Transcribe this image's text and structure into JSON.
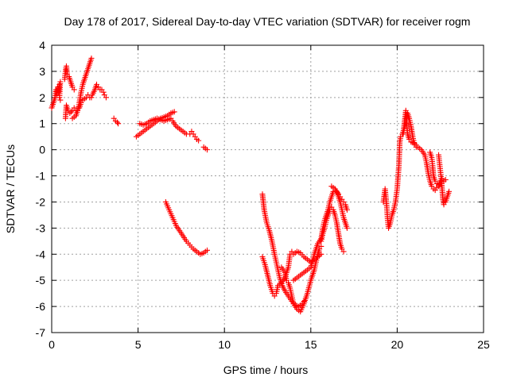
{
  "chart_data": {
    "type": "scatter",
    "title": "Day 178 of 2017, Sidereal Day-to-day VTEC variation (SDTVAR) for receiver rogm",
    "xlabel": "GPS time / hours",
    "ylabel": "SDTVAR / TECUs",
    "xlim": [
      0,
      25
    ],
    "ylim": [
      -7,
      4
    ],
    "xticks": [
      0,
      5,
      10,
      15,
      20,
      25
    ],
    "yticks": [
      -7,
      -6,
      -5,
      -4,
      -3,
      -2,
      -1,
      0,
      1,
      2,
      3,
      4
    ],
    "grid": true,
    "legend": "none",
    "marker": "+",
    "color": "#ff0000",
    "traces": [
      {
        "points": [
          [
            0.0,
            1.6
          ],
          [
            0.1,
            1.8
          ],
          [
            0.2,
            2.0
          ],
          [
            0.25,
            2.3
          ],
          [
            0.3,
            2.1
          ],
          [
            0.35,
            2.4
          ],
          [
            0.4,
            2.2
          ],
          [
            0.45,
            2.5
          ],
          [
            0.5,
            2.6
          ],
          [
            0.45,
            2.0
          ],
          [
            0.5,
            1.9
          ]
        ]
      },
      {
        "points": [
          [
            0.75,
            2.7
          ],
          [
            0.8,
            3.0
          ],
          [
            0.85,
            3.2
          ],
          [
            0.9,
            2.9
          ],
          [
            1.0,
            2.8
          ],
          [
            1.1,
            2.6
          ],
          [
            1.2,
            2.4
          ],
          [
            1.3,
            2.3
          ]
        ]
      },
      {
        "points": [
          [
            0.8,
            1.2
          ],
          [
            0.85,
            1.7
          ],
          [
            0.95,
            1.5
          ],
          [
            1.05,
            1.4
          ],
          [
            1.2,
            1.5
          ],
          [
            1.3,
            1.6
          ],
          [
            1.4,
            1.5
          ],
          [
            1.5,
            1.5
          ],
          [
            1.6,
            1.6
          ],
          [
            1.7,
            1.8
          ],
          [
            1.8,
            1.9
          ],
          [
            2.0,
            2.0
          ],
          [
            2.1,
            2.1
          ],
          [
            2.2,
            2.0
          ],
          [
            2.3,
            2.0
          ]
        ]
      },
      {
        "points": [
          [
            1.2,
            1.2
          ],
          [
            1.4,
            1.3
          ],
          [
            1.5,
            1.5
          ],
          [
            1.6,
            1.8
          ],
          [
            1.7,
            2.2
          ],
          [
            1.8,
            2.5
          ],
          [
            1.9,
            2.7
          ],
          [
            2.0,
            2.9
          ],
          [
            2.1,
            3.1
          ],
          [
            2.2,
            3.3
          ],
          [
            2.3,
            3.5
          ]
        ]
      },
      {
        "points": [
          [
            2.35,
            2.1
          ],
          [
            2.5,
            2.3
          ],
          [
            2.6,
            2.5
          ],
          [
            2.7,
            2.4
          ],
          [
            2.8,
            2.3
          ],
          [
            2.9,
            2.3
          ],
          [
            3.0,
            2.2
          ],
          [
            3.05,
            2.1
          ],
          [
            3.15,
            2.0
          ]
        ]
      },
      {
        "points": [
          [
            3.6,
            1.2
          ],
          [
            3.7,
            1.1
          ],
          [
            3.8,
            1.05
          ],
          [
            3.85,
            1.0
          ]
        ]
      },
      {
        "points": [
          [
            4.9,
            0.5
          ],
          [
            5.1,
            0.6
          ],
          [
            5.3,
            0.7
          ],
          [
            5.5,
            0.8
          ],
          [
            5.7,
            0.9
          ],
          [
            5.9,
            1.0
          ],
          [
            6.1,
            1.1
          ],
          [
            6.3,
            1.2
          ],
          [
            6.5,
            1.25
          ],
          [
            6.7,
            1.3
          ],
          [
            6.9,
            1.4
          ],
          [
            7.1,
            1.45
          ]
        ]
      },
      {
        "points": [
          [
            5.1,
            1.0
          ],
          [
            5.3,
            0.95
          ],
          [
            5.5,
            1.0
          ],
          [
            5.7,
            1.1
          ],
          [
            5.9,
            1.15
          ],
          [
            6.1,
            1.2
          ],
          [
            6.3,
            1.15
          ],
          [
            6.5,
            1.1
          ],
          [
            6.7,
            1.15
          ],
          [
            6.9,
            1.2
          ],
          [
            7.0,
            1.1
          ],
          [
            7.2,
            0.9
          ],
          [
            7.4,
            0.8
          ],
          [
            7.6,
            0.7
          ],
          [
            7.8,
            0.6
          ],
          [
            8.0,
            0.6
          ],
          [
            8.1,
            0.7
          ],
          [
            8.2,
            0.6
          ],
          [
            8.3,
            0.5
          ],
          [
            8.4,
            0.4
          ],
          [
            8.5,
            0.35
          ]
        ]
      },
      {
        "points": [
          [
            8.8,
            0.1
          ],
          [
            8.9,
            0.05
          ],
          [
            9.0,
            0.0
          ]
        ]
      },
      {
        "points": [
          [
            6.6,
            -2.0
          ],
          [
            6.8,
            -2.3
          ],
          [
            7.0,
            -2.6
          ],
          [
            7.2,
            -2.9
          ],
          [
            7.4,
            -3.1
          ],
          [
            7.6,
            -3.3
          ],
          [
            7.8,
            -3.5
          ],
          [
            8.0,
            -3.65
          ],
          [
            8.2,
            -3.8
          ],
          [
            8.4,
            -3.9
          ],
          [
            8.6,
            -4.0
          ],
          [
            8.8,
            -3.95
          ],
          [
            8.9,
            -3.9
          ],
          [
            9.0,
            -3.85
          ]
        ]
      },
      {
        "points": [
          [
            12.2,
            -1.7
          ],
          [
            12.3,
            -2.3
          ],
          [
            12.45,
            -2.8
          ],
          [
            12.6,
            -3.1
          ],
          [
            12.75,
            -3.5
          ],
          [
            12.9,
            -4.0
          ],
          [
            13.0,
            -4.3
          ],
          [
            13.1,
            -4.6
          ],
          [
            13.2,
            -4.9
          ],
          [
            13.35,
            -5.2
          ],
          [
            13.5,
            -5.4
          ],
          [
            13.7,
            -5.6
          ],
          [
            13.9,
            -5.8
          ],
          [
            14.1,
            -5.95
          ],
          [
            14.3,
            -6.0
          ],
          [
            14.5,
            -5.9
          ],
          [
            14.6,
            -5.8
          ]
        ]
      },
      {
        "points": [
          [
            12.2,
            -4.1
          ],
          [
            12.35,
            -4.4
          ],
          [
            12.5,
            -4.8
          ],
          [
            12.65,
            -5.2
          ],
          [
            12.8,
            -5.5
          ],
          [
            12.9,
            -5.6
          ],
          [
            13.0,
            -5.5
          ],
          [
            13.1,
            -5.2
          ],
          [
            13.3,
            -5.1
          ],
          [
            13.5,
            -4.9
          ],
          [
            13.7,
            -4.5
          ],
          [
            13.8,
            -4.0
          ],
          [
            13.9,
            -3.9
          ],
          [
            14.0,
            -4.0
          ],
          [
            14.2,
            -3.9
          ],
          [
            14.4,
            -3.95
          ],
          [
            14.6,
            -4.1
          ],
          [
            14.8,
            -4.2
          ],
          [
            15.0,
            -4.3
          ],
          [
            15.2,
            -4.2
          ],
          [
            15.4,
            -4.1
          ],
          [
            15.6,
            -4.0
          ]
        ]
      },
      {
        "points": [
          [
            13.3,
            -4.5
          ],
          [
            13.5,
            -4.7
          ],
          [
            13.6,
            -5.0
          ],
          [
            13.7,
            -5.1
          ],
          [
            13.8,
            -5.3
          ],
          [
            13.9,
            -5.6
          ],
          [
            14.0,
            -5.9
          ],
          [
            14.2,
            -6.1
          ],
          [
            14.4,
            -6.2
          ],
          [
            14.6,
            -5.9
          ],
          [
            14.8,
            -5.5
          ],
          [
            15.0,
            -5.0
          ],
          [
            15.2,
            -4.6
          ],
          [
            15.3,
            -4.3
          ],
          [
            15.4,
            -4.0
          ],
          [
            15.5,
            -3.8
          ],
          [
            15.6,
            -3.7
          ]
        ]
      },
      {
        "points": [
          [
            14.0,
            -5.0
          ],
          [
            14.2,
            -4.9
          ],
          [
            14.4,
            -4.8
          ],
          [
            14.6,
            -4.7
          ],
          [
            14.8,
            -4.6
          ],
          [
            15.0,
            -4.5
          ],
          [
            15.2,
            -4.0
          ],
          [
            15.4,
            -3.6
          ],
          [
            15.6,
            -3.4
          ],
          [
            15.7,
            -3.0
          ],
          [
            15.8,
            -2.7
          ],
          [
            15.9,
            -2.5
          ],
          [
            16.0,
            -2.3
          ],
          [
            16.1,
            -2.0
          ],
          [
            16.2,
            -1.8
          ],
          [
            16.3,
            -1.6
          ],
          [
            16.4,
            -1.5
          ],
          [
            16.5,
            -1.6
          ],
          [
            16.6,
            -1.8
          ],
          [
            16.7,
            -2.0
          ],
          [
            16.8,
            -2.3
          ],
          [
            16.9,
            -2.6
          ],
          [
            17.0,
            -2.8
          ],
          [
            17.1,
            -3.0
          ]
        ]
      },
      {
        "points": [
          [
            15.6,
            -3.5
          ],
          [
            15.7,
            -3.2
          ],
          [
            15.8,
            -3.0
          ],
          [
            15.9,
            -2.7
          ],
          [
            16.0,
            -2.5
          ],
          [
            16.1,
            -2.3
          ],
          [
            16.2,
            -2.2
          ],
          [
            16.3,
            -2.3
          ],
          [
            16.4,
            -2.5
          ],
          [
            16.5,
            -2.8
          ],
          [
            16.6,
            -3.2
          ],
          [
            16.7,
            -3.6
          ],
          [
            16.8,
            -3.8
          ],
          [
            16.9,
            -3.9
          ]
        ]
      },
      {
        "points": [
          [
            16.2,
            -1.4
          ],
          [
            16.4,
            -1.5
          ],
          [
            16.6,
            -1.7
          ],
          [
            16.7,
            -1.8
          ],
          [
            16.8,
            -1.9
          ],
          [
            16.9,
            -2.0
          ],
          [
            17.0,
            -2.1
          ],
          [
            17.1,
            -2.3
          ]
        ]
      },
      {
        "points": [
          [
            19.2,
            -2.0
          ],
          [
            19.3,
            -1.5
          ],
          [
            19.4,
            -2.2
          ],
          [
            19.45,
            -2.7
          ],
          [
            19.5,
            -3.0
          ],
          [
            19.6,
            -2.8
          ],
          [
            19.7,
            -2.5
          ],
          [
            19.8,
            -2.3
          ],
          [
            19.9,
            -2.0
          ],
          [
            20.0,
            -1.5
          ],
          [
            20.1,
            -0.6
          ],
          [
            20.15,
            0.3
          ],
          [
            20.2,
            0.5
          ],
          [
            20.3,
            0.6
          ],
          [
            20.4,
            0.8
          ],
          [
            20.5,
            1.0
          ],
          [
            20.55,
            1.2
          ],
          [
            20.6,
            1.4
          ],
          [
            20.7,
            1.2
          ],
          [
            20.8,
            0.9
          ],
          [
            20.9,
            0.5
          ],
          [
            21.0,
            0.2
          ],
          [
            21.1,
            0.1
          ]
        ]
      },
      {
        "points": [
          [
            20.35,
            0.6
          ],
          [
            20.45,
            1.2
          ],
          [
            20.5,
            1.5
          ],
          [
            20.55,
            1.0
          ],
          [
            20.6,
            0.6
          ],
          [
            20.7,
            0.4
          ],
          [
            20.8,
            0.3
          ],
          [
            21.0,
            0.25
          ],
          [
            21.2,
            0.1
          ],
          [
            21.4,
            0.0
          ],
          [
            21.6,
            -0.2
          ],
          [
            21.7,
            -0.5
          ],
          [
            21.8,
            -0.9
          ],
          [
            21.9,
            -1.2
          ],
          [
            22.0,
            -1.4
          ],
          [
            22.1,
            -1.5
          ],
          [
            22.2,
            -1.55
          ],
          [
            22.3,
            -1.45
          ],
          [
            22.4,
            -1.35
          ]
        ]
      },
      {
        "points": [
          [
            21.9,
            -0.1
          ],
          [
            22.0,
            -0.3
          ],
          [
            22.05,
            -0.6
          ],
          [
            22.1,
            -1.0
          ],
          [
            22.2,
            -1.2
          ],
          [
            22.3,
            -1.3
          ],
          [
            22.4,
            -1.4
          ],
          [
            22.5,
            -1.2
          ],
          [
            22.6,
            -1.1
          ],
          [
            22.7,
            -1.2
          ],
          [
            22.8,
            -1.15
          ]
        ]
      },
      {
        "points": [
          [
            22.4,
            -0.2
          ],
          [
            22.45,
            -0.5
          ],
          [
            22.5,
            -0.8
          ],
          [
            22.55,
            -1.1
          ],
          [
            22.6,
            -1.5
          ],
          [
            22.65,
            -1.9
          ],
          [
            22.7,
            -2.1
          ],
          [
            22.8,
            -2.0
          ],
          [
            22.9,
            -1.8
          ],
          [
            23.0,
            -1.6
          ]
        ]
      }
    ]
  }
}
